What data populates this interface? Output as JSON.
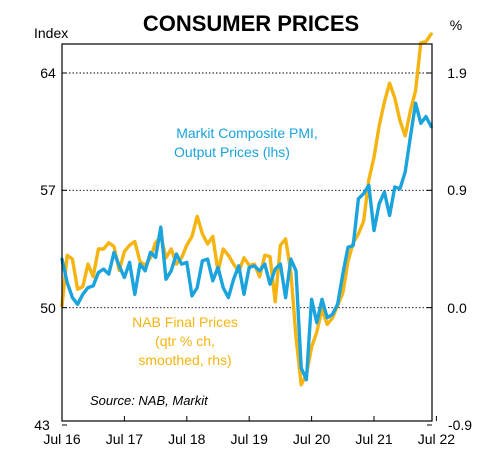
{
  "chart_data": {
    "type": "line",
    "title": "CONSUMER PRICES",
    "left_axis_label": "Index",
    "right_axis_label": "%",
    "left_ylim": [
      43,
      64
    ],
    "right_ylim": [
      -0.9,
      1.9
    ],
    "left_ticks": [
      "64",
      "57",
      "50",
      "43"
    ],
    "right_ticks": [
      "1.9",
      "0.9",
      "0.0",
      "-0.9"
    ],
    "x_ticks": [
      "Jul 16",
      "Jul 17",
      "Jul 18",
      "Jul 19",
      "Jul 20",
      "Jul 21",
      "Jul 22"
    ],
    "gridlines": "dotted at 64, 57, 50",
    "source": "Source: NAB, Markit",
    "series": [
      {
        "name": "Markit Composite PMI, Output Prices (lhs)",
        "label_lines": [
          "Markit Composite PMI,",
          "Output Prices (lhs)"
        ],
        "axis": "left",
        "color": "#1aa3dc",
        "x_start": "2016-07",
        "x_step_months": 1,
        "values": [
          52.9,
          51.5,
          50.6,
          50.2,
          50.8,
          51.2,
          51.3,
          52.1,
          52.3,
          52.0,
          53.3,
          52.5,
          51.8,
          52.7,
          50.8,
          52.6,
          52.2,
          53.3,
          53.0,
          54.8,
          51.7,
          52.2,
          53.2,
          52.6,
          52.7,
          50.7,
          51.2,
          52.8,
          52.9,
          51.6,
          52.4,
          51.2,
          50.6,
          51.7,
          52.5,
          50.8,
          52.4,
          52.5,
          52.2,
          52.6,
          51.4,
          52.3,
          52.6,
          50.6,
          52.9,
          52.2,
          46.4,
          45.7,
          50.5,
          49.1,
          50.5,
          49.4,
          49.6,
          50.2,
          52.0,
          53.6,
          53.7,
          56.5,
          56.8,
          57.3,
          54.6,
          56.2,
          56.9,
          55.5,
          57.2,
          57.1,
          58.1,
          60.2,
          62.2,
          61.0,
          61.4,
          60.8
        ]
      },
      {
        "name": "NAB Final Prices (qtr % ch, smoothed, rhs)",
        "label_lines": [
          "NAB Final Prices",
          "(qtr % ch,",
          "smoothed, rhs)"
        ],
        "axis": "right",
        "color": "#f5b40f",
        "x_start": "2016-07",
        "x_step_months": 1,
        "values": [
          0.05,
          0.45,
          0.42,
          0.18,
          0.2,
          0.38,
          0.28,
          0.5,
          0.5,
          0.55,
          0.52,
          0.33,
          0.48,
          0.53,
          0.56,
          0.4,
          0.37,
          0.43,
          0.55,
          0.6,
          0.43,
          0.5,
          0.38,
          0.43,
          0.53,
          0.6,
          0.76,
          0.62,
          0.54,
          0.6,
          0.32,
          0.5,
          0.45,
          0.38,
          0.32,
          0.43,
          0.37,
          0.38,
          0.28,
          0.45,
          0.44,
          0.08,
          0.53,
          0.58,
          0.32,
          -0.2,
          -0.58,
          -0.5,
          -0.28,
          -0.16,
          0.02,
          -0.1,
          -0.05,
          0.05,
          0.15,
          0.4,
          0.55,
          0.62,
          0.72,
          1.05,
          1.23,
          1.48,
          1.67,
          1.82,
          1.7,
          1.52,
          1.4,
          1.6,
          1.76,
          2.14,
          2.15,
          2.21
        ]
      }
    ]
  }
}
